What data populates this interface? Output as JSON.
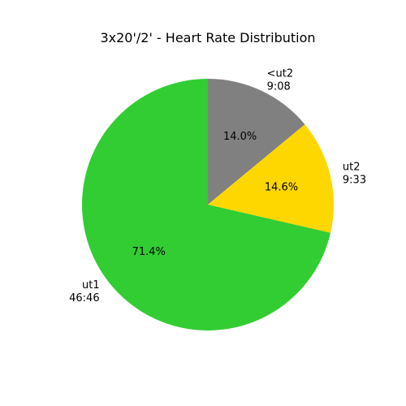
{
  "chart_data": {
    "type": "pie",
    "title": "3x20'/2' - Heart Rate Distribution",
    "start_angle_deg": 90,
    "direction": "clockwise",
    "slices": [
      {
        "label": "<ut2",
        "time": "9:08",
        "value": 14.0,
        "pct_label": "14.0%",
        "color": "#808080"
      },
      {
        "label": "ut2",
        "time": "9:33",
        "value": 14.6,
        "pct_label": "14.6%",
        "color": "#FFD700"
      },
      {
        "label": "ut1",
        "time": "46:46",
        "value": 71.4,
        "pct_label": "71.4%",
        "color": "#32CD32"
      }
    ]
  }
}
